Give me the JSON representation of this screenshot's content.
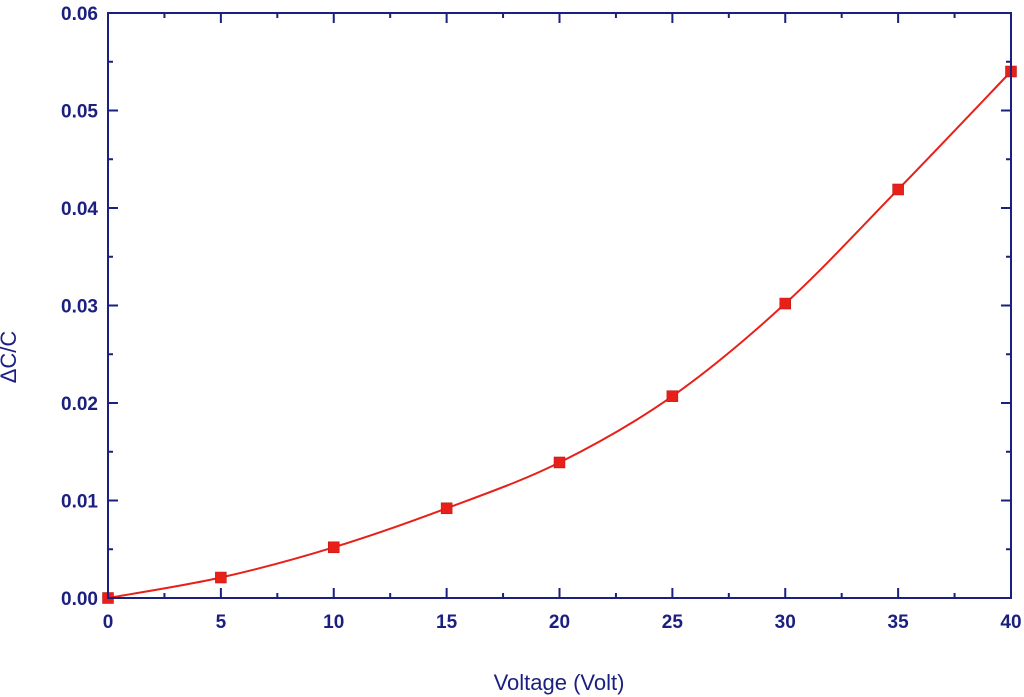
{
  "chart_data": {
    "type": "line",
    "title": "",
    "xlabel": "Voltage (Volt)",
    "ylabel": "ΔC/C",
    "xlim": [
      0,
      40
    ],
    "ylim": [
      0,
      0.06
    ],
    "x_ticks": [
      "0",
      "5",
      "10",
      "15",
      "20",
      "25",
      "30",
      "35",
      "40"
    ],
    "y_ticks": [
      "0.00",
      "0.01",
      "0.02",
      "0.03",
      "0.04",
      "0.05",
      "0.06"
    ],
    "x": [
      0,
      5,
      10,
      15,
      20,
      25,
      30,
      35,
      40
    ],
    "series": [
      {
        "values": [
          0.0,
          0.0021,
          0.0052,
          0.0092,
          0.0139,
          0.0207,
          0.0302,
          0.0419,
          0.054
        ]
      }
    ],
    "grid": false,
    "legend": "none",
    "marker": "square",
    "colors": {
      "axis": "#1a1f80",
      "series": "#e8201a",
      "marker": "#e8201a"
    }
  }
}
